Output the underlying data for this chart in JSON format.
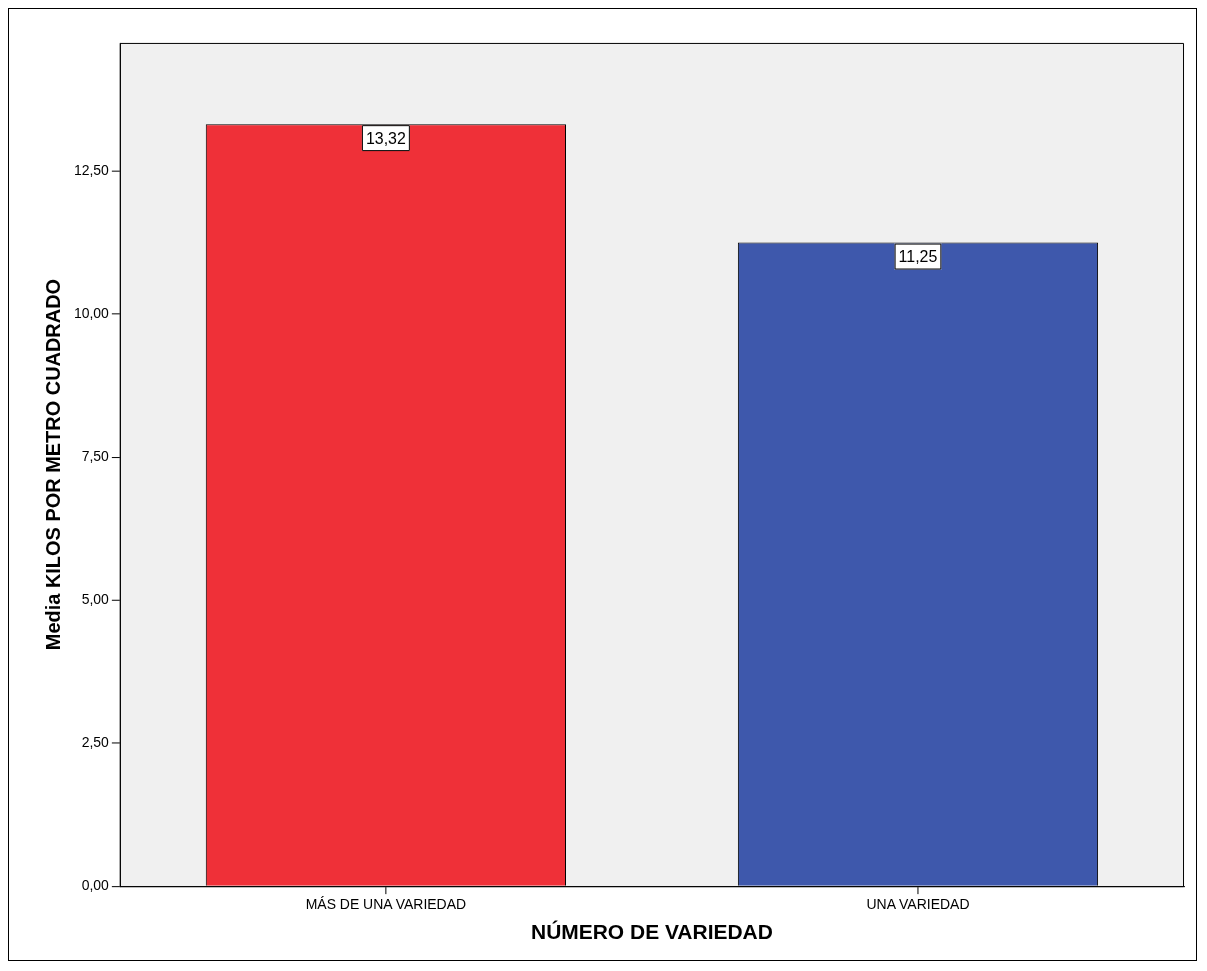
{
  "chart_data": {
    "type": "bar",
    "xlabel": "NÚMERO DE VARIEDAD",
    "ylabel": "Media KILOS POR METRO CUADRADO",
    "categories": [
      "MÁS DE UNA VARIEDAD",
      "UNA VARIEDAD"
    ],
    "values": [
      13.32,
      11.25
    ],
    "colors": [
      "#ef3038",
      "#3e58ac"
    ],
    "value_labels": [
      "13,32",
      "11,25"
    ],
    "ylim": [
      0,
      14.74
    ],
    "yticks": [
      {
        "value": 0,
        "label": "0,00"
      },
      {
        "value": 2.5,
        "label": "2,50"
      },
      {
        "value": 5,
        "label": "5,00"
      },
      {
        "value": 7.5,
        "label": "7,50"
      },
      {
        "value": 10,
        "label": "10,00"
      },
      {
        "value": 12.5,
        "label": "12,50"
      }
    ],
    "grid": false,
    "legend": false
  }
}
